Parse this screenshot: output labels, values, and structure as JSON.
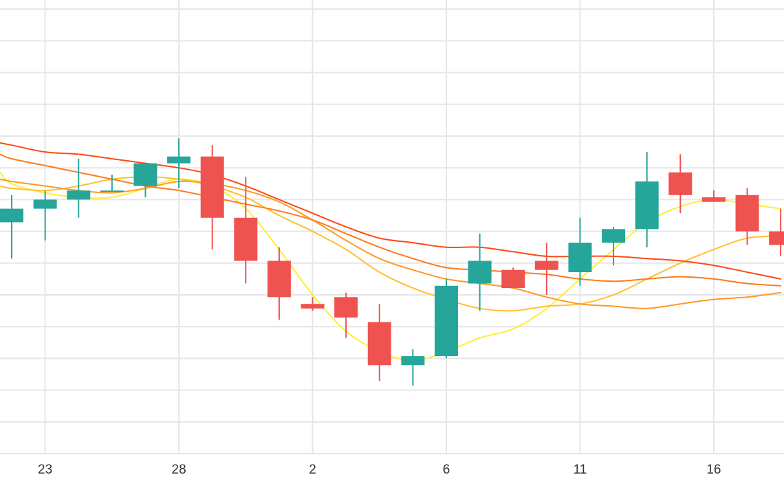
{
  "chart_data": {
    "type": "candlestick",
    "x_tick_labels": [
      {
        "x": 1.0,
        "label": "23"
      },
      {
        "x": 5.0,
        "label": "28"
      },
      {
        "x": 9.0,
        "label": "2"
      },
      {
        "x": 13.0,
        "label": "6"
      },
      {
        "x": 17.0,
        "label": "11"
      },
      {
        "x": 21.0,
        "label": "16"
      }
    ],
    "xlim": [
      -0.35,
      23.1
    ],
    "ylim": [
      0,
      100
    ],
    "grid": true,
    "y_gridlines": [
      7,
      14,
      21,
      28,
      35,
      42,
      49,
      56,
      63,
      70,
      77,
      84,
      91,
      98
    ],
    "colors": {
      "up": "#26a69a",
      "down": "#ef5350",
      "grid": "#e6e6e6",
      "background": "#ffffff"
    },
    "candles": [
      {
        "x": 0.0,
        "open": 51.0,
        "high": 57.0,
        "low": 43.0,
        "close": 54.0
      },
      {
        "x": 1.0,
        "open": 54.0,
        "high": 58.0,
        "low": 47.0,
        "close": 56.0
      },
      {
        "x": 2.0,
        "open": 56.0,
        "high": 65.0,
        "low": 52.0,
        "close": 58.0
      },
      {
        "x": 3.0,
        "open": 58.0,
        "high": 61.5,
        "low": 58.0,
        "close": 58.0
      },
      {
        "x": 4.0,
        "open": 59.0,
        "high": 64.0,
        "low": 56.5,
        "close": 64.0
      },
      {
        "x": 5.0,
        "open": 64.0,
        "high": 69.5,
        "low": 58.5,
        "close": 65.5
      },
      {
        "x": 6.0,
        "open": 65.5,
        "high": 68.0,
        "low": 45.0,
        "close": 52.0
      },
      {
        "x": 7.0,
        "open": 52.0,
        "high": 61.0,
        "low": 37.5,
        "close": 42.5
      },
      {
        "x": 8.0,
        "open": 42.5,
        "high": 45.5,
        "low": 29.5,
        "close": 34.5
      },
      {
        "x": 9.0,
        "open": 33.0,
        "high": 34.5,
        "low": 31.5,
        "close": 32.0
      },
      {
        "x": 10.0,
        "open": 34.5,
        "high": 35.5,
        "low": 25.5,
        "close": 30.0
      },
      {
        "x": 11.0,
        "open": 29.0,
        "high": 33.0,
        "low": 16.0,
        "close": 19.5
      },
      {
        "x": 12.0,
        "open": 19.5,
        "high": 23.0,
        "low": 15.0,
        "close": 21.5
      },
      {
        "x": 13.0,
        "open": 21.5,
        "high": 38.5,
        "low": 21.0,
        "close": 37.0
      },
      {
        "x": 14.0,
        "open": 37.5,
        "high": 48.5,
        "low": 31.5,
        "close": 42.5
      },
      {
        "x": 15.0,
        "open": 40.5,
        "high": 41.0,
        "low": 36.5,
        "close": 36.5
      },
      {
        "x": 16.0,
        "open": 42.5,
        "high": 46.5,
        "low": 35.0,
        "close": 40.5
      },
      {
        "x": 17.0,
        "open": 40.0,
        "high": 52.0,
        "low": 37.0,
        "close": 46.5
      },
      {
        "x": 18.0,
        "open": 46.5,
        "high": 50.0,
        "low": 41.5,
        "close": 49.5
      },
      {
        "x": 19.0,
        "open": 49.5,
        "high": 66.5,
        "low": 45.5,
        "close": 60.0
      },
      {
        "x": 20.0,
        "open": 62.0,
        "high": 66.0,
        "low": 53.0,
        "close": 57.0
      },
      {
        "x": 21.0,
        "open": 56.5,
        "high": 58.0,
        "low": 55.5,
        "close": 55.5
      },
      {
        "x": 22.0,
        "open": 57.0,
        "high": 58.5,
        "low": 46.0,
        "close": 49.0
      },
      {
        "x": 23.0,
        "open": 49.0,
        "high": 54.0,
        "low": 43.5,
        "close": 46.0
      }
    ],
    "series": [
      {
        "color": "#ffee33",
        "points": [
          [
            -0.35,
            62.0
          ],
          [
            0.0,
            59.5
          ],
          [
            1.0,
            57.5
          ],
          [
            2.0,
            56.5
          ],
          [
            3.0,
            56.5
          ],
          [
            4.0,
            58.5
          ],
          [
            5.0,
            60.5
          ],
          [
            6.0,
            59.0
          ],
          [
            7.0,
            54.0
          ],
          [
            8.0,
            45.0
          ],
          [
            9.0,
            35.0
          ],
          [
            10.0,
            27.0
          ],
          [
            11.0,
            22.5
          ],
          [
            12.0,
            20.5
          ],
          [
            13.0,
            22.5
          ],
          [
            14.0,
            25.5
          ],
          [
            15.0,
            27.5
          ],
          [
            16.0,
            32.0
          ],
          [
            17.0,
            38.5
          ],
          [
            18.0,
            45.0
          ],
          [
            19.0,
            51.0
          ],
          [
            20.0,
            54.5
          ],
          [
            21.0,
            56.0
          ],
          [
            22.0,
            55.0
          ],
          [
            23.0,
            54.0
          ]
        ]
      },
      {
        "color": "#ffc02e",
        "points": [
          [
            -0.35,
            59.0
          ],
          [
            0.0,
            58.5
          ],
          [
            1.0,
            58.0
          ],
          [
            2.0,
            59.0
          ],
          [
            3.0,
            60.5
          ],
          [
            4.0,
            61.0
          ],
          [
            5.0,
            60.5
          ],
          [
            6.0,
            59.0
          ],
          [
            7.0,
            56.5
          ],
          [
            8.0,
            52.5
          ],
          [
            9.0,
            49.0
          ],
          [
            10.0,
            45.0
          ],
          [
            11.0,
            40.0
          ],
          [
            12.0,
            36.5
          ],
          [
            13.0,
            34.0
          ],
          [
            14.0,
            32.0
          ],
          [
            15.0,
            31.5
          ],
          [
            16.0,
            32.5
          ],
          [
            17.0,
            33.0
          ],
          [
            18.0,
            35.0
          ],
          [
            19.0,
            38.5
          ],
          [
            20.0,
            42.0
          ],
          [
            21.0,
            45.0
          ],
          [
            22.0,
            47.5
          ],
          [
            23.0,
            48.0
          ]
        ]
      },
      {
        "color": "#ff9a24",
        "points": [
          [
            -0.35,
            60.5
          ],
          [
            0.0,
            60.0
          ],
          [
            1.0,
            59.0
          ],
          [
            2.0,
            58.0
          ],
          [
            3.0,
            57.5
          ],
          [
            4.0,
            58.5
          ],
          [
            5.0,
            60.0
          ],
          [
            6.0,
            59.5
          ],
          [
            7.0,
            58.0
          ],
          [
            8.0,
            55.5
          ],
          [
            9.0,
            51.5
          ],
          [
            10.0,
            47.0
          ],
          [
            11.0,
            43.0
          ],
          [
            12.0,
            40.5
          ],
          [
            13.0,
            38.5
          ],
          [
            14.0,
            37.5
          ],
          [
            15.0,
            36.5
          ],
          [
            16.0,
            34.5
          ],
          [
            17.0,
            33.0
          ],
          [
            18.0,
            32.5
          ],
          [
            19.0,
            32.0
          ],
          [
            20.0,
            33.0
          ],
          [
            21.0,
            34.0
          ],
          [
            22.0,
            34.5
          ],
          [
            23.0,
            35.5
          ]
        ]
      },
      {
        "color": "#ff7a1e",
        "points": [
          [
            -0.35,
            66.0
          ],
          [
            0.0,
            65.0
          ],
          [
            1.0,
            63.5
          ],
          [
            2.0,
            62.0
          ],
          [
            3.0,
            60.5
          ],
          [
            4.0,
            59.0
          ],
          [
            5.0,
            58.0
          ],
          [
            6.0,
            56.5
          ],
          [
            7.0,
            55.0
          ],
          [
            8.0,
            53.5
          ],
          [
            9.0,
            51.5
          ],
          [
            10.0,
            48.5
          ],
          [
            11.0,
            45.5
          ],
          [
            12.0,
            43.0
          ],
          [
            13.0,
            41.0
          ],
          [
            14.0,
            40.5
          ],
          [
            15.0,
            40.0
          ],
          [
            16.0,
            39.5
          ],
          [
            17.0,
            38.5
          ],
          [
            18.0,
            38.0
          ],
          [
            19.0,
            38.5
          ],
          [
            20.0,
            39.0
          ],
          [
            21.0,
            38.5
          ],
          [
            22.0,
            37.5
          ],
          [
            23.0,
            37.0
          ]
        ]
      },
      {
        "color": "#ff4a14",
        "points": [
          [
            -0.35,
            68.5
          ],
          [
            0.0,
            68.0
          ],
          [
            1.0,
            66.5
          ],
          [
            2.0,
            66.0
          ],
          [
            3.0,
            65.0
          ],
          [
            4.0,
            64.0
          ],
          [
            5.0,
            63.0
          ],
          [
            6.0,
            61.5
          ],
          [
            7.0,
            59.0
          ],
          [
            8.0,
            56.0
          ],
          [
            9.0,
            53.0
          ],
          [
            10.0,
            50.0
          ],
          [
            11.0,
            47.5
          ],
          [
            12.0,
            46.5
          ],
          [
            13.0,
            45.5
          ],
          [
            14.0,
            45.5
          ],
          [
            15.0,
            44.5
          ],
          [
            16.0,
            43.5
          ],
          [
            17.0,
            43.5
          ],
          [
            18.0,
            43.5
          ],
          [
            19.0,
            43.0
          ],
          [
            20.0,
            42.5
          ],
          [
            21.0,
            41.5
          ],
          [
            22.0,
            40.0
          ],
          [
            23.0,
            38.5
          ]
        ]
      }
    ]
  }
}
